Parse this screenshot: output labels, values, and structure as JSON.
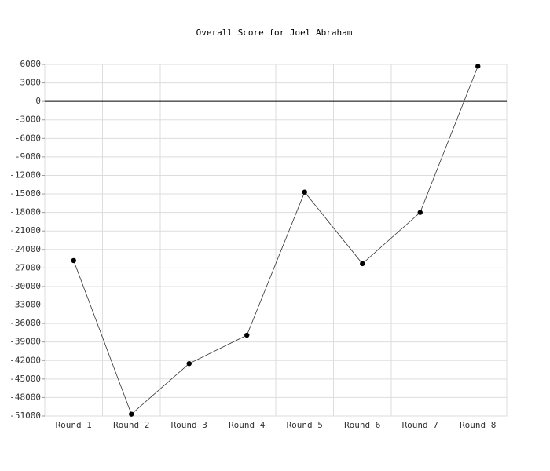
{
  "chart_data": {
    "type": "line",
    "title": "Overall Score for Joel Abraham",
    "categories": [
      "Round 1",
      "Round 2",
      "Round 3",
      "Round 4",
      "Round 5",
      "Round 6",
      "Round 7",
      "Round 8"
    ],
    "series": [
      {
        "name": "Overall Score",
        "color": "#333333",
        "values": [
          -25800,
          -50700,
          -42500,
          -37900,
          -14700,
          -26300,
          -18000,
          5700
        ]
      }
    ],
    "ylim": [
      -51000,
      6000
    ],
    "yticks": [
      6000,
      3000,
      0,
      -3000,
      -6000,
      -9000,
      -12000,
      -15000,
      -18000,
      -21000,
      -24000,
      -27000,
      -30000,
      -33000,
      -36000,
      -39000,
      -42000,
      -45000,
      -48000,
      -51000
    ],
    "grid": true
  }
}
